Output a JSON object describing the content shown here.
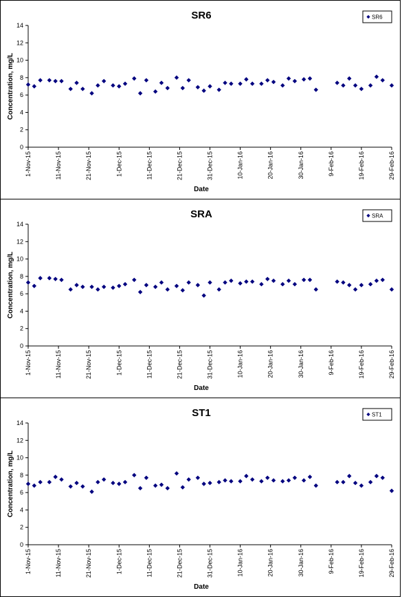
{
  "chart_data": [
    {
      "type": "scatter",
      "title": "SR6",
      "xlabel": "Date",
      "ylabel": "Concentration, mg/L",
      "ylim": [
        0,
        14
      ],
      "yticks": [
        0,
        2,
        4,
        6,
        8,
        10,
        12,
        14
      ],
      "xlim": [
        "2015-11-01",
        "2016-02-29"
      ],
      "xticks": [
        "1-Nov-15",
        "11-Nov-15",
        "21-Nov-15",
        "1-Dec-15",
        "11-Dec-15",
        "21-Dec-15",
        "31-Dec-15",
        "10-Jan-16",
        "20-Jan-16",
        "30-Jan-16",
        "9-Feb-16",
        "19-Feb-16",
        "29-Feb-16"
      ],
      "legend_position": "top-right",
      "marker_color": "#00007F",
      "series": [
        {
          "name": "SR6",
          "x": [
            "2015-11-01",
            "2015-11-03",
            "2015-11-05",
            "2015-11-08",
            "2015-11-10",
            "2015-11-12",
            "2015-11-15",
            "2015-11-17",
            "2015-11-19",
            "2015-11-22",
            "2015-11-24",
            "2015-11-26",
            "2015-11-29",
            "2015-12-01",
            "2015-12-03",
            "2015-12-06",
            "2015-12-08",
            "2015-12-10",
            "2015-12-13",
            "2015-12-15",
            "2015-12-17",
            "2015-12-20",
            "2015-12-22",
            "2015-12-24",
            "2015-12-27",
            "2015-12-29",
            "2015-12-31",
            "2016-01-03",
            "2016-01-05",
            "2016-01-07",
            "2016-01-10",
            "2016-01-12",
            "2016-01-14",
            "2016-01-17",
            "2016-01-19",
            "2016-01-21",
            "2016-01-24",
            "2016-01-26",
            "2016-01-28",
            "2016-01-31",
            "2016-02-02",
            "2016-02-04",
            "2016-02-11",
            "2016-02-13",
            "2016-02-15",
            "2016-02-17",
            "2016-02-19",
            "2016-02-22",
            "2016-02-24",
            "2016-02-26",
            "2016-02-29"
          ],
          "y": [
            7.2,
            7.0,
            7.7,
            7.7,
            7.6,
            7.6,
            6.7,
            7.4,
            6.7,
            6.2,
            7.1,
            7.6,
            7.1,
            7.0,
            7.3,
            7.9,
            6.2,
            7.7,
            6.4,
            7.4,
            6.8,
            8.0,
            6.8,
            7.7,
            6.9,
            6.5,
            7.0,
            6.6,
            7.4,
            7.3,
            7.3,
            7.8,
            7.3,
            7.3,
            7.7,
            7.5,
            7.1,
            7.9,
            7.6,
            7.8,
            7.9,
            6.6,
            7.4,
            7.1,
            7.9,
            7.1,
            6.7,
            7.1,
            8.1,
            7.7,
            7.1
          ]
        }
      ]
    },
    {
      "type": "scatter",
      "title": "SRA",
      "xlabel": "Date",
      "ylabel": "Concentration, mg/L",
      "ylim": [
        0,
        14
      ],
      "yticks": [
        0,
        2,
        4,
        6,
        8,
        10,
        12,
        14
      ],
      "xlim": [
        "2015-11-01",
        "2016-02-29"
      ],
      "xticks": [
        "1-Nov-15",
        "11-Nov-15",
        "21-Nov-15",
        "1-Dec-15",
        "11-Dec-15",
        "21-Dec-15",
        "31-Dec-15",
        "10-Jan-16",
        "20-Jan-16",
        "30-Jan-16",
        "9-Feb-16",
        "19-Feb-16",
        "29-Feb-16"
      ],
      "legend_position": "top-right",
      "marker_color": "#00007F",
      "series": [
        {
          "name": "SRA",
          "x": [
            "2015-11-01",
            "2015-11-03",
            "2015-11-05",
            "2015-11-08",
            "2015-11-10",
            "2015-11-12",
            "2015-11-15",
            "2015-11-17",
            "2015-11-19",
            "2015-11-22",
            "2015-11-24",
            "2015-11-26",
            "2015-11-29",
            "2015-12-01",
            "2015-12-03",
            "2015-12-06",
            "2015-12-08",
            "2015-12-10",
            "2015-12-13",
            "2015-12-15",
            "2015-12-17",
            "2015-12-20",
            "2015-12-22",
            "2015-12-24",
            "2015-12-27",
            "2015-12-29",
            "2015-12-31",
            "2016-01-03",
            "2016-01-05",
            "2016-01-07",
            "2016-01-10",
            "2016-01-12",
            "2016-01-14",
            "2016-01-17",
            "2016-01-19",
            "2016-01-21",
            "2016-01-24",
            "2016-01-26",
            "2016-01-28",
            "2016-01-31",
            "2016-02-02",
            "2016-02-04",
            "2016-02-11",
            "2016-02-13",
            "2016-02-15",
            "2016-02-17",
            "2016-02-19",
            "2016-02-22",
            "2016-02-24",
            "2016-02-26",
            "2016-02-29"
          ],
          "y": [
            7.3,
            6.9,
            7.8,
            7.8,
            7.7,
            7.6,
            6.5,
            7.0,
            6.8,
            6.8,
            6.5,
            6.8,
            6.7,
            6.9,
            7.1,
            7.6,
            6.2,
            7.0,
            6.8,
            7.3,
            6.5,
            6.9,
            6.4,
            7.3,
            7.0,
            5.8,
            7.3,
            6.5,
            7.3,
            7.5,
            7.2,
            7.4,
            7.4,
            7.1,
            7.7,
            7.5,
            7.1,
            7.5,
            7.1,
            7.6,
            7.6,
            6.5,
            7.4,
            7.3,
            7.0,
            6.5,
            7.0,
            7.1,
            7.5,
            7.6,
            6.5
          ]
        }
      ]
    },
    {
      "type": "scatter",
      "title": "ST1",
      "xlabel": "Date",
      "ylabel": "Concentration, mg/L",
      "ylim": [
        0,
        14
      ],
      "yticks": [
        0,
        2,
        4,
        6,
        8,
        10,
        12,
        14
      ],
      "xlim": [
        "2015-11-01",
        "2016-02-29"
      ],
      "xticks": [
        "1-Nov-15",
        "11-Nov-15",
        "21-Nov-15",
        "1-Dec-15",
        "11-Dec-15",
        "21-Dec-15",
        "31-Dec-15",
        "10-Jan-16",
        "20-Jan-16",
        "30-Jan-16",
        "9-Feb-16",
        "19-Feb-16",
        "29-Feb-16"
      ],
      "legend_position": "top-right",
      "marker_color": "#00007F",
      "series": [
        {
          "name": "ST1",
          "x": [
            "2015-11-01",
            "2015-11-03",
            "2015-11-05",
            "2015-11-08",
            "2015-11-10",
            "2015-11-12",
            "2015-11-15",
            "2015-11-17",
            "2015-11-19",
            "2015-11-22",
            "2015-11-24",
            "2015-11-26",
            "2015-11-29",
            "2015-12-01",
            "2015-12-03",
            "2015-12-06",
            "2015-12-08",
            "2015-12-10",
            "2015-12-13",
            "2015-12-15",
            "2015-12-17",
            "2015-12-20",
            "2015-12-22",
            "2015-12-24",
            "2015-12-27",
            "2015-12-29",
            "2015-12-31",
            "2016-01-03",
            "2016-01-05",
            "2016-01-07",
            "2016-01-10",
            "2016-01-12",
            "2016-01-14",
            "2016-01-17",
            "2016-01-19",
            "2016-01-21",
            "2016-01-24",
            "2016-01-26",
            "2016-01-28",
            "2016-01-31",
            "2016-02-02",
            "2016-02-04",
            "2016-02-11",
            "2016-02-13",
            "2016-02-15",
            "2016-02-17",
            "2016-02-19",
            "2016-02-22",
            "2016-02-24",
            "2016-02-26",
            "2016-02-29"
          ],
          "y": [
            7.0,
            6.8,
            7.2,
            7.2,
            7.8,
            7.5,
            6.7,
            7.1,
            6.7,
            6.1,
            7.2,
            7.5,
            7.1,
            7.0,
            7.2,
            8.0,
            6.5,
            7.7,
            6.8,
            6.9,
            6.5,
            8.2,
            6.6,
            7.5,
            7.7,
            7.0,
            7.1,
            7.2,
            7.4,
            7.3,
            7.3,
            7.9,
            7.5,
            7.3,
            7.7,
            7.4,
            7.3,
            7.4,
            7.7,
            7.4,
            7.8,
            6.8,
            7.2,
            7.2,
            7.9,
            7.1,
            6.8,
            7.2,
            7.9,
            7.7,
            6.2
          ]
        }
      ]
    }
  ]
}
